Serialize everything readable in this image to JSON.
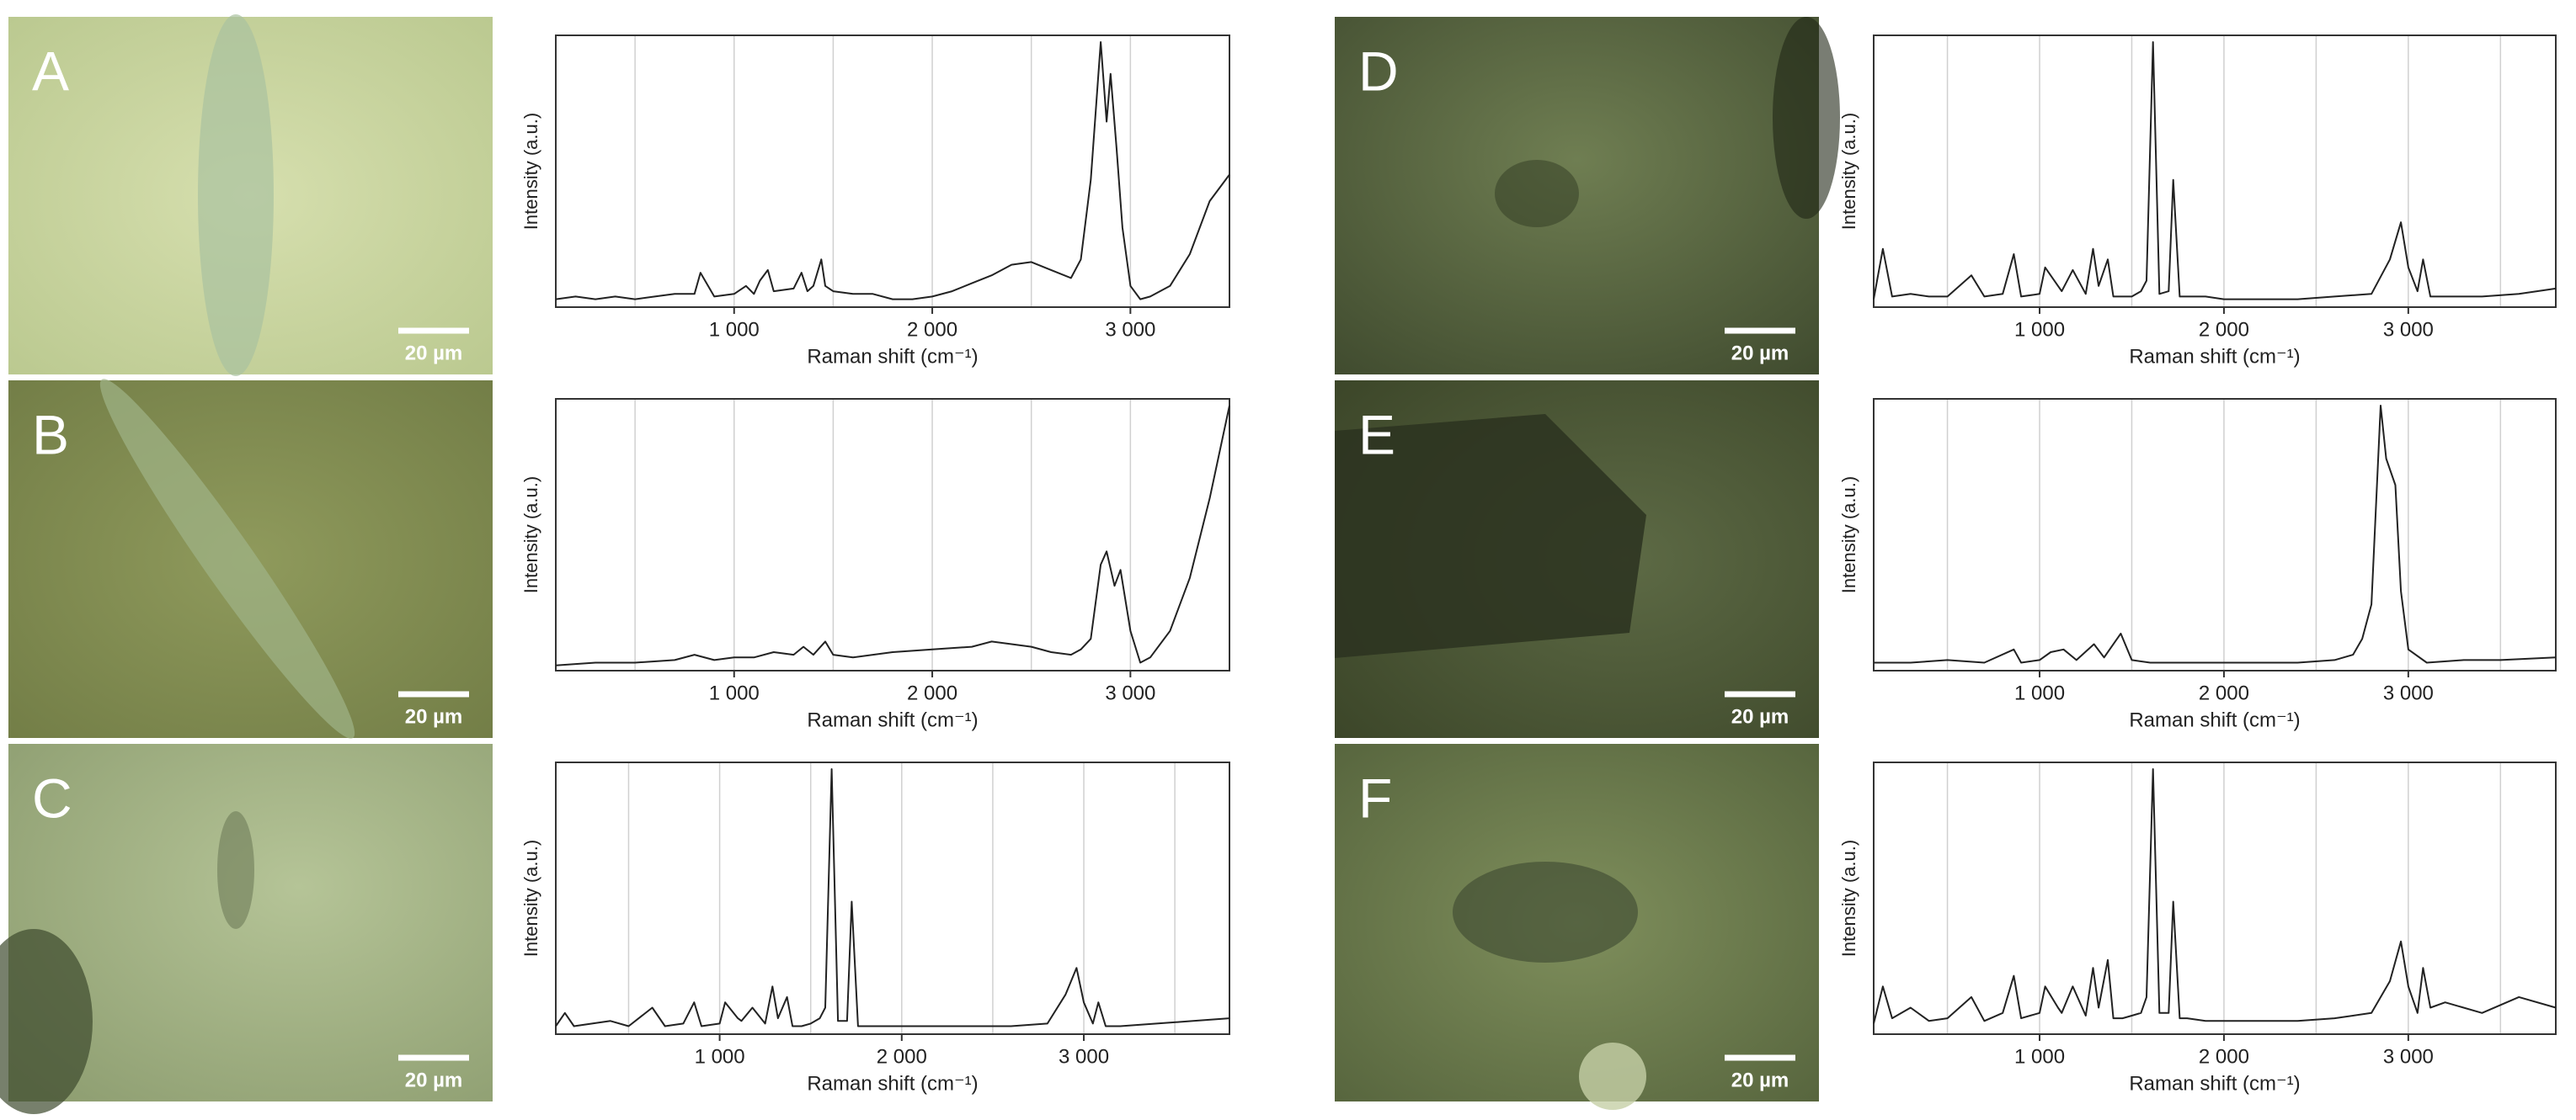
{
  "chart_data": [
    {
      "type": "line",
      "panel": "A",
      "scale_bar": "20 µm",
      "x_label": "Raman shift (cm⁻¹)",
      "y_label": "Intensity (a.u.)",
      "color": "#222222",
      "x": [
        100,
        200,
        300,
        400,
        500,
        600,
        700,
        800,
        830,
        900,
        1000,
        1060,
        1100,
        1130,
        1170,
        1200,
        1300,
        1340,
        1370,
        1400,
        1440,
        1460,
        1500,
        1600,
        1700,
        1800,
        1900,
        2000,
        2100,
        2200,
        2300,
        2400,
        2500,
        2600,
        2700,
        2750,
        2800,
        2850,
        2880,
        2900,
        2930,
        2960,
        3000,
        3050,
        3100,
        3200,
        3300,
        3400,
        3500
      ],
      "values": [
        3,
        4,
        3,
        4,
        3,
        4,
        5,
        5,
        13,
        4,
        5,
        8,
        5,
        10,
        14,
        6,
        7,
        13,
        6,
        8,
        18,
        8,
        6,
        5,
        5,
        3,
        3,
        4,
        6,
        9,
        12,
        16,
        17,
        14,
        11,
        18,
        48,
        100,
        70,
        88,
        60,
        30,
        8,
        3,
        4,
        8,
        20,
        40,
        50
      ],
      "xlim": [
        100,
        3500
      ],
      "ylim": [
        0,
        100
      ],
      "xticks": [
        {
          "value": 1000,
          "label": "1 000"
        },
        {
          "value": 2000,
          "label": "2 000"
        },
        {
          "value": 3000,
          "label": "3 000"
        }
      ],
      "xgrid": [
        500,
        1000,
        1500,
        2000,
        2500,
        3000
      ],
      "grid": true
    },
    {
      "type": "line",
      "panel": "B",
      "scale_bar": "20 µm",
      "x_label": "Raman shift (cm⁻¹)",
      "y_label": "Intensity (a.u.)",
      "color": "#222222",
      "x": [
        100,
        300,
        500,
        700,
        800,
        900,
        1000,
        1100,
        1200,
        1300,
        1350,
        1400,
        1460,
        1500,
        1600,
        1800,
        2000,
        2200,
        2300,
        2400,
        2500,
        2600,
        2700,
        2750,
        2800,
        2850,
        2880,
        2920,
        2950,
        3000,
        3050,
        3100,
        3200,
        3300,
        3400,
        3500
      ],
      "values": [
        2,
        3,
        3,
        4,
        6,
        4,
        5,
        5,
        7,
        6,
        9,
        6,
        11,
        6,
        5,
        7,
        8,
        9,
        11,
        10,
        9,
        7,
        6,
        8,
        12,
        40,
        45,
        32,
        38,
        15,
        3,
        5,
        15,
        35,
        65,
        100
      ],
      "xlim": [
        100,
        3500
      ],
      "ylim": [
        0,
        100
      ],
      "xticks": [
        {
          "value": 1000,
          "label": "1 000"
        },
        {
          "value": 2000,
          "label": "2 000"
        },
        {
          "value": 3000,
          "label": "3 000"
        }
      ],
      "xgrid": [
        500,
        1000,
        1500,
        2000,
        2500,
        3000
      ],
      "grid": true
    },
    {
      "type": "line",
      "panel": "C",
      "scale_bar": "20 µm",
      "x_label": "Raman shift (cm⁻¹)",
      "y_label": "Intensity (a.u.)",
      "color": "#222222",
      "x": [
        100,
        150,
        200,
        300,
        400,
        500,
        630,
        700,
        800,
        860,
        900,
        1000,
        1030,
        1100,
        1120,
        1180,
        1250,
        1290,
        1320,
        1370,
        1400,
        1450,
        1500,
        1550,
        1580,
        1615,
        1650,
        1700,
        1725,
        1760,
        1800,
        1900,
        2000,
        2200,
        2400,
        2600,
        2800,
        2900,
        2960,
        3000,
        3050,
        3080,
        3120,
        3200,
        3400,
        3600,
        3800
      ],
      "values": [
        3,
        8,
        3,
        4,
        5,
        3,
        10,
        3,
        4,
        12,
        3,
        4,
        12,
        6,
        5,
        10,
        4,
        18,
        6,
        14,
        3,
        3,
        4,
        6,
        10,
        100,
        5,
        5,
        50,
        3,
        3,
        3,
        3,
        3,
        3,
        3,
        4,
        15,
        25,
        12,
        4,
        12,
        3,
        3,
        4,
        5,
        6
      ],
      "xlim": [
        100,
        3800
      ],
      "ylim": [
        0,
        100
      ],
      "xticks": [
        {
          "value": 1000,
          "label": "1 000"
        },
        {
          "value": 2000,
          "label": "2 000"
        },
        {
          "value": 3000,
          "label": "3 000"
        }
      ],
      "xgrid": [
        500,
        1000,
        1500,
        2000,
        2500,
        3000,
        3500
      ],
      "grid": true
    },
    {
      "type": "line",
      "panel": "D",
      "scale_bar": "20 µm",
      "x_label": "Raman shift (cm⁻¹)",
      "y_label": "Intensity (a.u.)",
      "color": "#222222",
      "x": [
        100,
        150,
        200,
        300,
        400,
        500,
        630,
        700,
        800,
        860,
        900,
        1000,
        1030,
        1100,
        1120,
        1180,
        1250,
        1290,
        1320,
        1370,
        1400,
        1450,
        1500,
        1550,
        1580,
        1615,
        1650,
        1700,
        1725,
        1760,
        1800,
        1900,
        2000,
        2200,
        2400,
        2600,
        2800,
        2900,
        2960,
        3000,
        3050,
        3080,
        3120,
        3200,
        3400,
        3600,
        3800
      ],
      "values": [
        3,
        22,
        4,
        5,
        4,
        4,
        12,
        4,
        5,
        20,
        4,
        5,
        15,
        8,
        6,
        14,
        5,
        22,
        8,
        18,
        4,
        4,
        4,
        6,
        10,
        100,
        5,
        6,
        48,
        4,
        4,
        4,
        3,
        3,
        3,
        4,
        5,
        18,
        32,
        15,
        6,
        18,
        4,
        4,
        4,
        5,
        7
      ],
      "xlim": [
        100,
        3800
      ],
      "ylim": [
        0,
        100
      ],
      "xticks": [
        {
          "value": 1000,
          "label": "1 000"
        },
        {
          "value": 2000,
          "label": "2 000"
        },
        {
          "value": 3000,
          "label": "3 000"
        }
      ],
      "xgrid": [
        500,
        1000,
        1500,
        2000,
        2500,
        3000,
        3500
      ],
      "grid": true
    },
    {
      "type": "line",
      "panel": "E",
      "scale_bar": "20 µm",
      "x_label": "Raman shift (cm⁻¹)",
      "y_label": "Intensity (a.u.)",
      "color": "#222222",
      "x": [
        100,
        300,
        500,
        700,
        860,
        900,
        1000,
        1060,
        1130,
        1200,
        1295,
        1350,
        1440,
        1500,
        1600,
        1800,
        2000,
        2200,
        2400,
        2600,
        2700,
        2750,
        2800,
        2850,
        2880,
        2930,
        2960,
        3000,
        3100,
        3300,
        3500,
        3800
      ],
      "values": [
        3,
        3,
        4,
        3,
        8,
        3,
        4,
        7,
        8,
        4,
        10,
        5,
        14,
        4,
        3,
        3,
        3,
        3,
        3,
        4,
        6,
        12,
        25,
        100,
        80,
        70,
        30,
        8,
        3,
        4,
        4,
        5
      ],
      "xlim": [
        100,
        3800
      ],
      "ylim": [
        0,
        100
      ],
      "xticks": [
        {
          "value": 1000,
          "label": "1 000"
        },
        {
          "value": 2000,
          "label": "2 000"
        },
        {
          "value": 3000,
          "label": "3 000"
        }
      ],
      "xgrid": [
        500,
        1000,
        1500,
        2000,
        2500,
        3000,
        3500
      ],
      "grid": true
    },
    {
      "type": "line",
      "panel": "F",
      "scale_bar": "20 µm",
      "x_label": "Raman shift (cm⁻¹)",
      "y_label": "Intensity (a.u.)",
      "color": "#222222",
      "x": [
        100,
        150,
        200,
        300,
        400,
        500,
        630,
        700,
        800,
        860,
        900,
        1000,
        1030,
        1100,
        1120,
        1180,
        1250,
        1290,
        1320,
        1370,
        1400,
        1450,
        1500,
        1550,
        1580,
        1615,
        1650,
        1700,
        1725,
        1760,
        1800,
        1900,
        2000,
        2200,
        2400,
        2600,
        2800,
        2900,
        2960,
        3000,
        3050,
        3080,
        3120,
        3200,
        3400,
        3600,
        3800
      ],
      "values": [
        4,
        18,
        6,
        10,
        5,
        6,
        14,
        5,
        8,
        22,
        6,
        8,
        18,
        10,
        8,
        18,
        7,
        25,
        10,
        28,
        6,
        6,
        7,
        8,
        14,
        100,
        8,
        8,
        50,
        6,
        6,
        5,
        5,
        5,
        5,
        6,
        8,
        20,
        35,
        18,
        8,
        25,
        10,
        12,
        8,
        14,
        10
      ],
      "xlim": [
        100,
        3800
      ],
      "ylim": [
        0,
        100
      ],
      "xticks": [
        {
          "value": 1000,
          "label": "1 000"
        },
        {
          "value": 2000,
          "label": "2 000"
        },
        {
          "value": 3000,
          "label": "3 000"
        }
      ],
      "xgrid": [
        500,
        1000,
        1500,
        2000,
        2500,
        3000,
        3500
      ],
      "grid": true
    }
  ]
}
